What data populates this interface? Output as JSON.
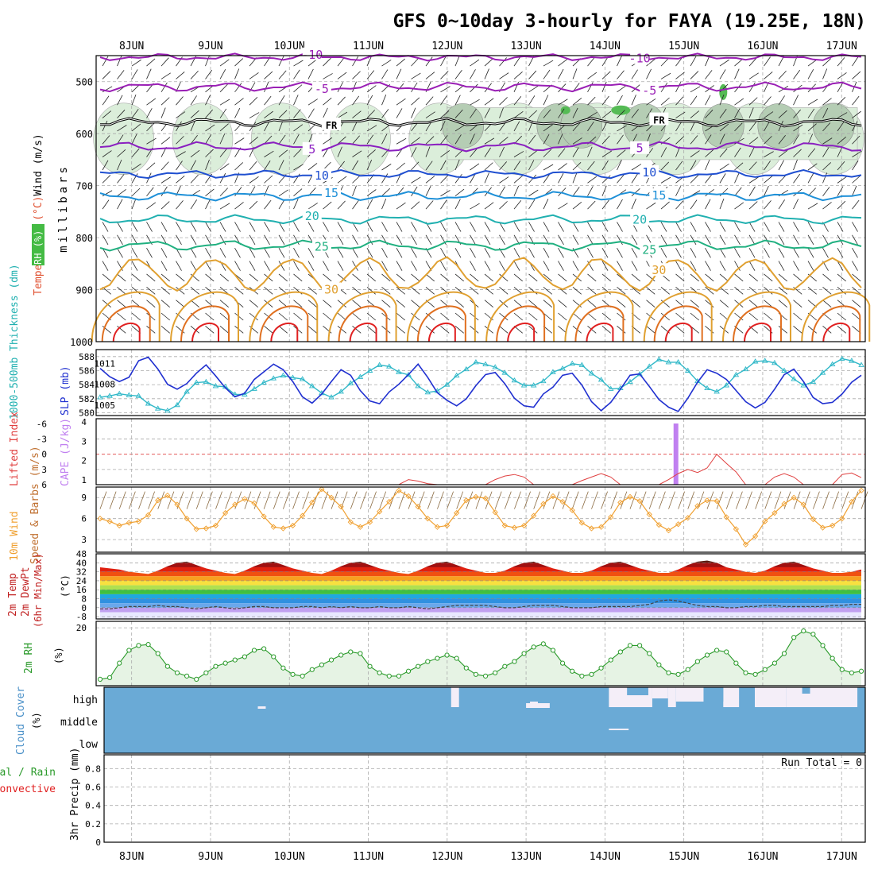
{
  "chart_data": {
    "type": "line",
    "title": "GFS 0~10day 3-hourly for FAYA (19.25E, 18N)",
    "dates": [
      "8JUN",
      "9JUN",
      "10JUN",
      "11JUN",
      "12JUN",
      "13JUN",
      "14JUN",
      "15JUN",
      "16JUN",
      "17JUN"
    ],
    "x_start_day": 7.55,
    "x_end_day": 17.3,
    "panels": {
      "upper": {
        "ylabels": [
          "Wind (m/s)",
          "Temperature (°C)",
          "RH (%)",
          "millibars"
        ],
        "ylim": [
          1000,
          450
        ],
        "ticks": [
          "500",
          "600",
          "700",
          "800",
          "900",
          "1000"
        ],
        "tick_values": [
          500,
          600,
          700,
          800,
          900,
          1000
        ],
        "freezing_label": "FR",
        "contours": [
          {
            "label": "-10",
            "color": "#9a1fb5",
            "base": 453,
            "amp": 4
          },
          {
            "label": "-5",
            "color": "#9a1fb5",
            "base": 510,
            "amp": 6
          },
          {
            "label": "FR",
            "color": "#000000",
            "base": 578,
            "amp": 5
          },
          {
            "label": "5",
            "color": "#8a1fc0",
            "base": 625,
            "amp": 6
          },
          {
            "label": "10",
            "color": "#1f4fd0",
            "base": 678,
            "amp": 5
          },
          {
            "label": "15",
            "color": "#1e90d8",
            "base": 720,
            "amp": 6
          },
          {
            "label": "20",
            "color": "#20b0b0",
            "base": 765,
            "amp": 6
          },
          {
            "label": "25",
            "color": "#20b080",
            "base": 815,
            "amp": 7
          },
          {
            "label": "30",
            "color": "#e0a030",
            "base": 870,
            "amp": 30
          }
        ],
        "rh_label": "30"
      },
      "thickness": {
        "ylabels": [
          "1000-500mb Thickness (dm)",
          "SLP (mb)"
        ],
        "left_ticks": [
          "588",
          "586",
          "584",
          "582",
          "580"
        ],
        "left_tick_values": [
          588,
          586,
          584,
          582,
          580
        ],
        "right_ticks": [
          "1011",
          "1008",
          "1005"
        ],
        "right_tick_values": [
          1011,
          1008,
          1005
        ],
        "slp": [
          1010.3,
          1009.1,
          1008.4,
          1009.0,
          1011.4,
          1011.9,
          1010.2,
          1008.0,
          1007.3,
          1008.1,
          1009.6,
          1010.8,
          1009.2,
          1007.5,
          1006.2,
          1006.7,
          1008.7,
          1009.8,
          1010.9,
          1010.1,
          1008.4,
          1006.2,
          1005.3,
          1006.6,
          1008.4,
          1010.1,
          1009.3,
          1007.1,
          1005.6,
          1005.2,
          1006.9,
          1008.0,
          1009.4,
          1010.9,
          1009.0,
          1006.8,
          1005.7,
          1004.9,
          1005.9,
          1007.8,
          1009.4,
          1009.7,
          1008.1,
          1006.0,
          1004.9,
          1004.7,
          1006.6,
          1007.6,
          1009.3,
          1009.6,
          1007.9,
          1005.5,
          1004.2,
          1005.4,
          1007.3,
          1009.3,
          1009.5,
          1007.7,
          1005.8,
          1004.7,
          1004.1,
          1006.0,
          1008.3,
          1010.1,
          1009.6,
          1008.7,
          1007.1,
          1005.5,
          1004.6,
          1005.4,
          1007.3,
          1009.4,
          1010.2,
          1008.4,
          1006.1,
          1005.2,
          1005.4,
          1006.6,
          1008.3,
          1009.3
        ],
        "thickness": [
          582.2,
          582.4,
          582.7,
          582.5,
          582.4,
          581.3,
          580.6,
          580.3,
          581.1,
          583.0,
          584.3,
          584.4,
          583.8,
          583.7,
          582.6,
          582.6,
          583.4,
          584.3,
          584.9,
          585.3,
          585.0,
          584.8,
          583.8,
          582.8,
          582.2,
          583.0,
          584.2,
          585.1,
          586.0,
          586.8,
          586.6,
          585.8,
          585.4,
          583.8,
          582.9,
          583.1,
          584.0,
          585.3,
          586.2,
          587.2,
          586.9,
          586.5,
          585.7,
          584.6,
          583.9,
          583.9,
          584.5,
          585.8,
          586.3,
          587.0,
          586.8,
          585.6,
          584.7,
          583.4,
          583.5,
          584.4,
          585.5,
          586.6,
          587.6,
          587.2,
          587.2,
          586.0,
          584.5,
          583.5,
          583.0,
          583.9,
          585.4,
          586.2,
          587.3,
          587.4,
          587.1,
          586.0,
          584.8,
          583.9,
          584.4,
          585.7,
          586.9,
          587.7,
          587.4,
          586.8
        ]
      },
      "cape": {
        "ylabels": [
          "Lifted Index",
          "CAPE (J/kg)"
        ],
        "left_ticks": [
          "-6",
          "-3",
          "0",
          "3",
          "6"
        ],
        "right_ticks": [
          "4",
          "3",
          "2",
          "1"
        ],
        "cape_bar_day": 14.9,
        "cape_bar_value": 4,
        "lifted_index": [
          6,
          6,
          6,
          6,
          6,
          6,
          6,
          6,
          6,
          6,
          6,
          6,
          6,
          6,
          6,
          6,
          6,
          6,
          6,
          6,
          6,
          6,
          6,
          6,
          6,
          6,
          6,
          6,
          6,
          6,
          6,
          6,
          5,
          5.3,
          5.8,
          6,
          6,
          6,
          6,
          6,
          6,
          5.0,
          4.3,
          4.0,
          4.5,
          6,
          6,
          6,
          6,
          6,
          5.2,
          4.5,
          3.8,
          4.5,
          6,
          6,
          6,
          6,
          6,
          5.0,
          3.8,
          3.0,
          3.6,
          2.7,
          0.0,
          1.8,
          3.5,
          6,
          6,
          6,
          4.5,
          3.8,
          4.5,
          6,
          6,
          6,
          6,
          4.0,
          3.7,
          4.6
        ]
      },
      "wind": {
        "ylabels": [
          "10m Wind",
          "Speed & Barbs (m/s)"
        ],
        "ticks": [
          "9",
          "6",
          "3"
        ],
        "tick_values": [
          9,
          6,
          3
        ],
        "ylim": [
          1.2,
          10.5
        ],
        "speed": [
          6,
          5.6,
          5.0,
          5.4,
          5.6,
          6.5,
          8.6,
          9.3,
          8.0,
          6.0,
          4.5,
          4.6,
          5.0,
          6.8,
          8.0,
          8.8,
          8.2,
          6.3,
          4.8,
          4.6,
          5.0,
          6.4,
          8.3,
          10.2,
          9.0,
          7.7,
          5.5,
          4.8,
          5.5,
          7.0,
          8.4,
          10.0,
          9.2,
          7.7,
          6.0,
          4.8,
          5.0,
          6.8,
          8.6,
          9.1,
          8.9,
          6.9,
          5.0,
          4.7,
          5.0,
          6.4,
          8.1,
          9.2,
          8.4,
          7.2,
          5.4,
          4.6,
          4.8,
          6.2,
          8.3,
          9.1,
          8.5,
          6.6,
          5.1,
          4.3,
          5.2,
          6.1,
          7.8,
          8.6,
          8.5,
          6.2,
          4.5,
          2.3,
          3.5,
          5.6,
          6.8,
          8.1,
          9.0,
          8.0,
          5.9,
          4.7,
          5.0,
          6.0,
          8.4,
          10.0
        ]
      },
      "temp": {
        "ylabels": [
          "2m Temp",
          "2m DewPt",
          "(6hr Min/Max)",
          "(°C)"
        ],
        "ticks": [
          "48",
          "40",
          "32",
          "24",
          "16",
          "8",
          "0",
          "-8"
        ],
        "tick_values": [
          48,
          40,
          32,
          24,
          16,
          8,
          0,
          -8
        ],
        "temperature": [
          36,
          35,
          34,
          32,
          31,
          30,
          33,
          37,
          40,
          41,
          38,
          35,
          33,
          31,
          30,
          33,
          37,
          40,
          41,
          38,
          35,
          33,
          31,
          30,
          33,
          37,
          40,
          41,
          38,
          35,
          33,
          31,
          30,
          33,
          37,
          40,
          41,
          38,
          35,
          33,
          31,
          31,
          33,
          37,
          40,
          41,
          38,
          35,
          33,
          31,
          31,
          33,
          37,
          40,
          41,
          38,
          35,
          33,
          31,
          31,
          34,
          38,
          41,
          42,
          40,
          36,
          34,
          32,
          31,
          33,
          37,
          40,
          41,
          38,
          35,
          33,
          31,
          31,
          32,
          34
        ],
        "dewpoint": [
          -1,
          -1,
          0,
          1,
          1,
          1,
          2,
          1,
          1,
          0,
          -1,
          0,
          1,
          0,
          -1,
          0,
          1,
          1,
          0,
          0,
          0,
          1,
          1,
          0,
          1,
          0,
          1,
          0,
          0,
          1,
          0,
          0,
          1,
          0,
          -1,
          0,
          1,
          2,
          2,
          2,
          2,
          1,
          0,
          0,
          1,
          2,
          2,
          2,
          1,
          0,
          0,
          0,
          1,
          1,
          1,
          1,
          2,
          3,
          6,
          7,
          6,
          4,
          2,
          1,
          1,
          0,
          0,
          1,
          1,
          2,
          2,
          1,
          1,
          1,
          1,
          1,
          2,
          2,
          3,
          3
        ]
      },
      "rh": {
        "ylabels": [
          "2m RH",
          "(%)"
        ],
        "ticks": [
          "20"
        ],
        "tick_values": [
          20
        ],
        "ymax": 22,
        "ymin": 2,
        "rh": [
          4.0,
          4.5,
          9.0,
          13.0,
          14.5,
          14.8,
          12.0,
          8.0,
          6.0,
          5.0,
          4.0,
          6.0,
          8.0,
          9.0,
          10.0,
          11.0,
          13.0,
          13.5,
          11.0,
          7.5,
          5.5,
          5.0,
          7.0,
          8.5,
          10.0,
          11.5,
          12.5,
          12.0,
          8.0,
          6.0,
          5.0,
          5.0,
          6.5,
          8.0,
          9.5,
          10.5,
          11.5,
          10.5,
          7.5,
          5.5,
          5.0,
          6.0,
          8.0,
          9.5,
          12.0,
          14.0,
          15.0,
          13.0,
          9.0,
          6.5,
          5.0,
          5.5,
          7.5,
          10.0,
          12.5,
          14.5,
          14.5,
          12.0,
          8.5,
          6.0,
          5.5,
          7.0,
          9.5,
          11.5,
          13.0,
          12.5,
          9.0,
          6.0,
          5.5,
          7.0,
          9.0,
          12.0,
          17.0,
          19.0,
          18.0,
          14.5,
          10.5,
          7.0,
          6.0,
          6.5
        ]
      },
      "cloud": {
        "ylabels": [
          "Cloud Cover",
          "(%)"
        ],
        "levels": [
          "high",
          "middle",
          "low"
        ]
      },
      "precip": {
        "ylabels": [
          "Total / Rain",
          "Convective",
          "3hr Precip (mm)"
        ],
        "ticks": [
          "0.8",
          "0.6",
          "0.4",
          "0.2",
          "0"
        ],
        "tick_values": [
          0.8,
          0.6,
          0.4,
          0.2,
          0
        ],
        "run_total": "Run Total = 0"
      }
    }
  }
}
